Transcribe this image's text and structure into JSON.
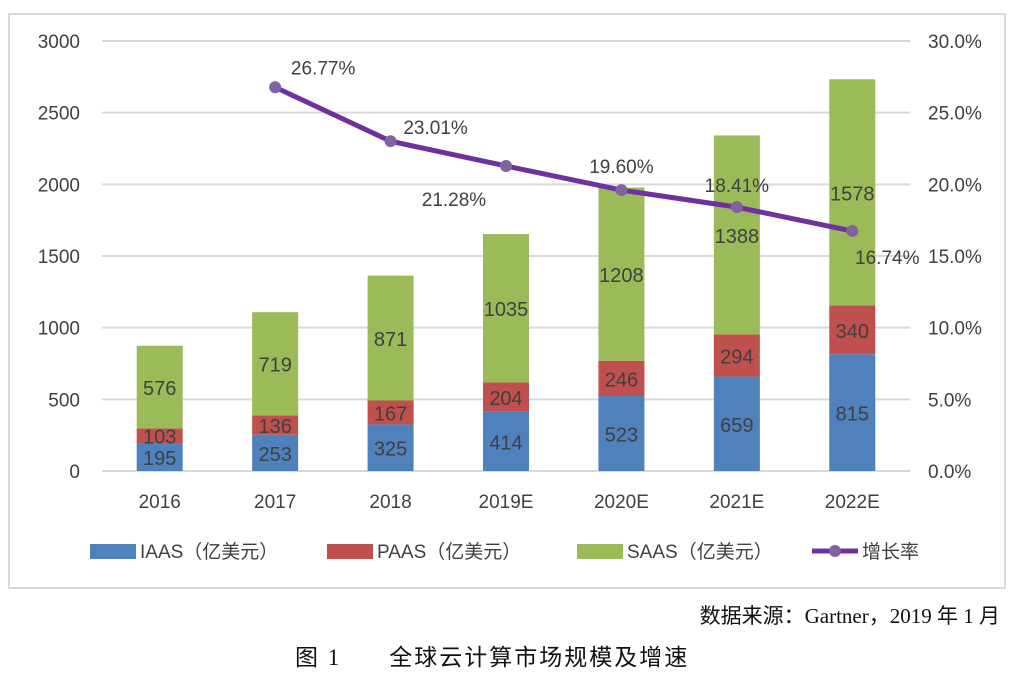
{
  "chart_data": {
    "type": "bar",
    "stacked": true,
    "categories": [
      "2016",
      "2017",
      "2018",
      "2019E",
      "2020E",
      "2021E",
      "2022E"
    ],
    "series": [
      {
        "name": "IAAS（亿美元）",
        "color": "#4f81bd",
        "values": [
          195,
          253,
          325,
          414,
          523,
          659,
          815
        ]
      },
      {
        "name": "PAAS（亿美元）",
        "color": "#c0504d",
        "values": [
          103,
          136,
          167,
          204,
          246,
          294,
          340
        ]
      },
      {
        "name": "SAAS（亿美元）",
        "color": "#9bbb59",
        "values": [
          576,
          719,
          871,
          1035,
          1208,
          1388,
          1578
        ]
      }
    ],
    "line_series": {
      "name": "增长率",
      "color": "#7030a0",
      "axis": "right",
      "values": [
        null,
        26.77,
        23.01,
        21.28,
        19.6,
        18.41,
        16.74
      ],
      "labels": [
        "",
        "26.77%",
        "23.01%",
        "21.28%",
        "19.60%",
        "18.41%",
        "16.74%"
      ]
    },
    "y_left": {
      "ylim": [
        0,
        3000
      ],
      "ticks": [
        "0",
        "500",
        "1000",
        "1500",
        "2000",
        "2500",
        "3000"
      ]
    },
    "y_right": {
      "ylim": [
        0,
        30
      ],
      "ticks": [
        "0.0%",
        "5.0%",
        "10.0%",
        "15.0%",
        "20.0%",
        "25.0%",
        "30.0%"
      ]
    },
    "grid": true,
    "legend": "bottom"
  },
  "source": "数据来源：Gartner，2019 年 1 月",
  "caption": {
    "number": "图 1",
    "title": "全球云计算市场规模及增速"
  }
}
